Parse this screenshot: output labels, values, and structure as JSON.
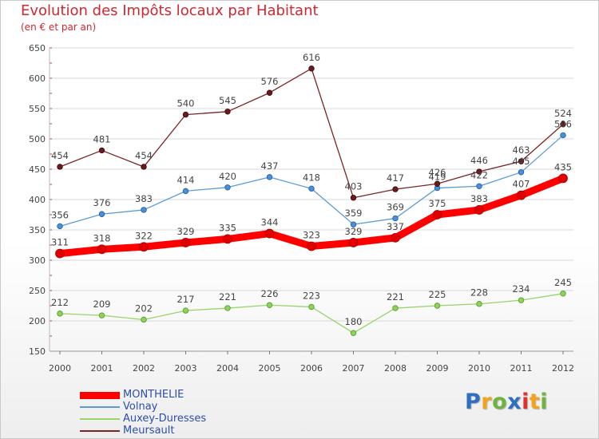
{
  "title": "Evolution des Impôts locaux par Habitant",
  "subtitle": "(en € et par an)",
  "logo": {
    "text": "Proxiti",
    "letter_colors": [
      "#2f6fc1",
      "#f2a31b",
      "#6fb43f",
      "#2f6fc1",
      "#e0312a",
      "#f2a31b",
      "#6fb43f"
    ]
  },
  "chart_data": {
    "type": "line",
    "title": "Evolution des Impôts locaux par Habitant",
    "subtitle": "(en € et par an)",
    "xlabel": "",
    "ylabel": "",
    "x": [
      "2000",
      "2001",
      "2002",
      "2003",
      "2004",
      "2005",
      "2006",
      "2007",
      "2008",
      "2009",
      "2010",
      "2011",
      "2012"
    ],
    "ylim": [
      150,
      650
    ],
    "yticks": [
      150,
      200,
      250,
      300,
      350,
      400,
      450,
      500,
      550,
      600,
      650
    ],
    "grid": "horizontal",
    "legend_position": "bottom-left",
    "series": [
      {
        "name": "MONTHELIE",
        "color": "#ff0000",
        "values": [
          311,
          318,
          322,
          329,
          335,
          344,
          323,
          329,
          337,
          375,
          383,
          407,
          435
        ]
      },
      {
        "name": "Volnay",
        "color": "#5b9bd5",
        "values": [
          356,
          376,
          383,
          414,
          420,
          437,
          418,
          359,
          369,
          419,
          422,
          445,
          506
        ]
      },
      {
        "name": "Auxey-Duresses",
        "color": "#99d36a",
        "values": [
          212,
          209,
          202,
          217,
          221,
          226,
          223,
          180,
          221,
          225,
          228,
          234,
          245
        ]
      },
      {
        "name": "Meursault",
        "color": "#7b2424",
        "values": [
          454,
          481,
          454,
          540,
          545,
          576,
          616,
          403,
          417,
          426,
          446,
          463,
          524
        ]
      }
    ]
  }
}
